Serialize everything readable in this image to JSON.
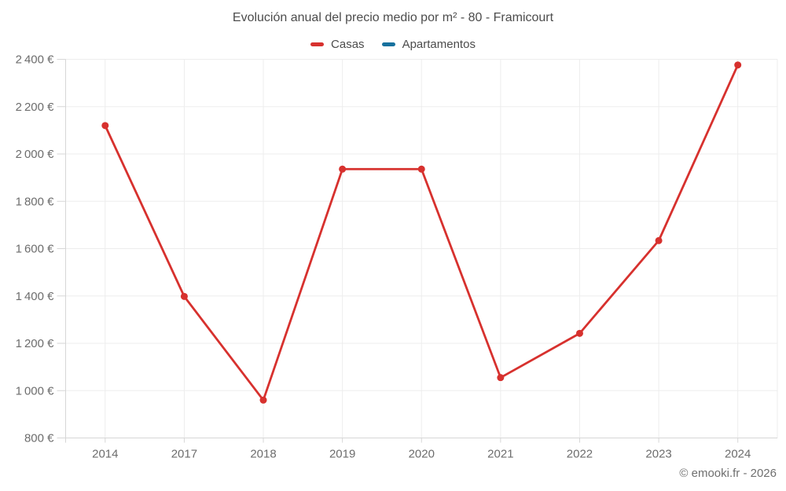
{
  "footer": {
    "copyright": "© emooki.fr - 2026"
  },
  "chart_data": {
    "type": "line",
    "title": "Evolución anual del precio medio por m² - 80 - Framicourt",
    "categories": [
      "2014",
      "2017",
      "2018",
      "2019",
      "2020",
      "2021",
      "2022",
      "2023",
      "2024"
    ],
    "series": [
      {
        "name": "Casas",
        "color": "#d7312e",
        "values": [
          2120,
          1398,
          960,
          1936,
          1936,
          1055,
          1242,
          1634,
          2376
        ]
      },
      {
        "name": "Apartamentos",
        "color": "#17719e",
        "values": []
      }
    ],
    "xlabel": "",
    "ylabel": "",
    "ylim": [
      800,
      2400
    ],
    "y_ticks": [
      800,
      1000,
      1200,
      1400,
      1600,
      1800,
      2000,
      2200,
      2400
    ],
    "y_tick_suffix": " €",
    "grid": true,
    "legend_position": "top",
    "colors": {
      "grid_line": "#ededed",
      "axis_line": "#d6d6d6",
      "tick_label": "#6d6d6d",
      "title_text": "#4c4c4c"
    }
  }
}
